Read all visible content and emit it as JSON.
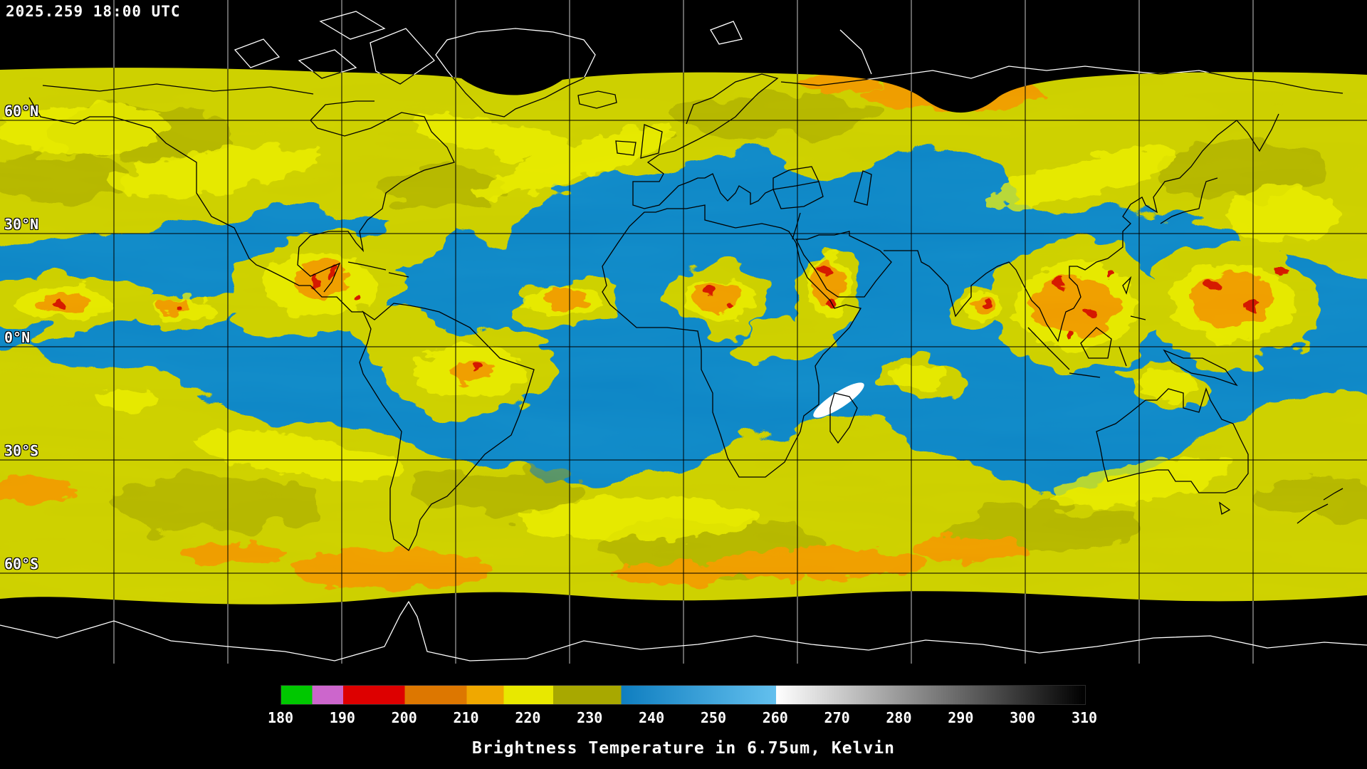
{
  "header": {
    "timestamp": "2025.259 18:00 UTC"
  },
  "map": {
    "latitude_labels": [
      "60°N",
      "30°N",
      "0°N",
      "30°S",
      "60°S"
    ],
    "graticule_spacing_deg": 30,
    "colors": {
      "ocean": "#0e86c6",
      "cloud": "#cccf00",
      "cloudBright": "#eef000",
      "cloudDark": "#9b9e00",
      "orange": "#ef9c00",
      "red": "#d41400",
      "artifact": "#ffffff",
      "grid": "#000000",
      "gridPolar": "#c8c8c8",
      "coast": "#000000",
      "coastPolar": "#ffffff",
      "background": "#000000"
    }
  },
  "colorbar": {
    "title": "Brightness Temperature in 6.75um, Kelvin",
    "unit": "Kelvin",
    "wavelength": "6.75um",
    "min": 180,
    "max": 310,
    "ticks": [
      "180",
      "190",
      "200",
      "210",
      "220",
      "230",
      "240",
      "250",
      "260",
      "270",
      "280",
      "290",
      "300",
      "310"
    ],
    "segments": [
      {
        "from": 180,
        "to": 185,
        "color": "#00c800"
      },
      {
        "from": 185,
        "to": 190,
        "color": "#cc66cc"
      },
      {
        "from": 190,
        "to": 200,
        "color": "#dd0000"
      },
      {
        "from": 200,
        "to": 210,
        "color": "#dd7700"
      },
      {
        "from": 210,
        "to": 216,
        "color": "#f0a800"
      },
      {
        "from": 216,
        "to": 224,
        "color": "#e8e800"
      },
      {
        "from": 224,
        "to": 235,
        "color": "#a8a800"
      },
      {
        "from": 235,
        "to": 260,
        "color": "#0f7ec0",
        "color2": "#63c0ee"
      },
      {
        "from": 260,
        "to": 310,
        "color": "#ffffff",
        "color2": "#000000"
      }
    ]
  }
}
